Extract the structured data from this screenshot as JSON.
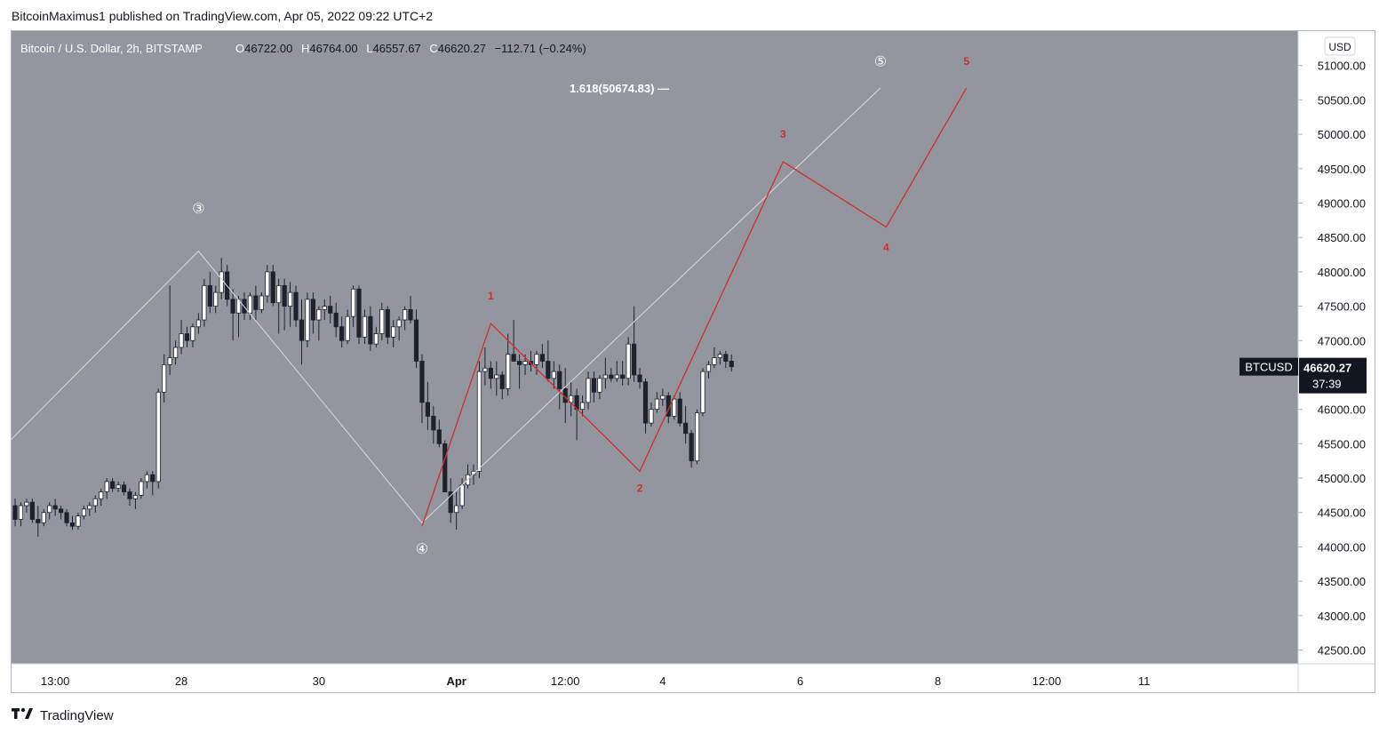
{
  "publisher_line": "BitcoinMaximus1 published on TradingView.com, Apr 05, 2022 09:22 UTC+2",
  "footer": {
    "brand": "TradingView"
  },
  "colors": {
    "plot_bg": "#94969f",
    "grid_text": "#131722",
    "candle_up": "#ffffff",
    "candle_down": "#1e222d",
    "wave_white": "#d6d8de",
    "wave_red": "#d2302c",
    "price_tag_bg": "#131722"
  },
  "chart_data": {
    "type": "candlestick",
    "title": "Bitcoin / U.S. Dollar, 2h, BITSTAMP",
    "ohlc_header": {
      "o_label": "O",
      "o": "46722.00",
      "h_label": "H",
      "h": "46764.00",
      "l_label": "L",
      "l": "46557.67",
      "c_label": "C",
      "c": "46620.27",
      "change": "−112.71 (−0.24%)"
    },
    "currency": "USD",
    "symbol": "BTCUSD",
    "last_price": "46620.27",
    "countdown": "37:39",
    "ylim": [
      42300,
      51500
    ],
    "y_ticks": [
      {
        "v": 42500,
        "label": "42500.00"
      },
      {
        "v": 43000,
        "label": "43000.00"
      },
      {
        "v": 43500,
        "label": "43500.00"
      },
      {
        "v": 44000,
        "label": "44000.00"
      },
      {
        "v": 44500,
        "label": "44500.00"
      },
      {
        "v": 45000,
        "label": "45000.00"
      },
      {
        "v": 45500,
        "label": "45500.00"
      },
      {
        "v": 46000,
        "label": "46000.00"
      },
      {
        "v": 46500,
        "label": "46500.00"
      },
      {
        "v": 47000,
        "label": "47000.00"
      },
      {
        "v": 47500,
        "label": "47500.00"
      },
      {
        "v": 48000,
        "label": "48000.00"
      },
      {
        "v": 48500,
        "label": "48500.00"
      },
      {
        "v": 49000,
        "label": "49000.00"
      },
      {
        "v": 49500,
        "label": "49500.00"
      },
      {
        "v": 50000,
        "label": "50000.00"
      },
      {
        "v": 50500,
        "label": "50500.00"
      },
      {
        "v": 51000,
        "label": "51000.00"
      }
    ],
    "x_ticks": [
      {
        "i": 7,
        "label": "13:00",
        "bold": false
      },
      {
        "i": 29,
        "label": "28",
        "bold": false
      },
      {
        "i": 53,
        "label": "30",
        "bold": false
      },
      {
        "i": 77,
        "label": "Apr",
        "bold": true
      },
      {
        "i": 96,
        "label": "12:00",
        "bold": false
      },
      {
        "i": 113,
        "label": "4",
        "bold": false
      },
      {
        "i": 137,
        "label": "6",
        "bold": false
      },
      {
        "i": 161,
        "label": "8",
        "bold": false
      },
      {
        "i": 180,
        "label": "12:00",
        "bold": false
      },
      {
        "i": 197,
        "label": "11",
        "bold": false
      }
    ],
    "candles": [
      [
        44600,
        44700,
        44300,
        44400
      ],
      [
        44400,
        44650,
        44300,
        44600
      ],
      [
        44600,
        44700,
        44500,
        44650
      ],
      [
        44650,
        44700,
        44350,
        44400
      ],
      [
        44400,
        44600,
        44150,
        44350
      ],
      [
        44350,
        44550,
        44300,
        44500
      ],
      [
        44500,
        44650,
        44400,
        44600
      ],
      [
        44600,
        44700,
        44450,
        44550
      ],
      [
        44550,
        44600,
        44400,
        44500
      ],
      [
        44500,
        44550,
        44300,
        44350
      ],
      [
        44350,
        44450,
        44250,
        44300
      ],
      [
        44300,
        44500,
        44250,
        44450
      ],
      [
        44450,
        44600,
        44400,
        44550
      ],
      [
        44550,
        44650,
        44450,
        44600
      ],
      [
        44600,
        44750,
        44500,
        44700
      ],
      [
        44700,
        44850,
        44600,
        44800
      ],
      [
        44800,
        45000,
        44700,
        44950
      ],
      [
        44950,
        45000,
        44800,
        44850
      ],
      [
        44850,
        44950,
        44800,
        44900
      ],
      [
        44900,
        44950,
        44750,
        44800
      ],
      [
        44800,
        44850,
        44600,
        44700
      ],
      [
        44700,
        44800,
        44550,
        44750
      ],
      [
        44750,
        45000,
        44700,
        44950
      ],
      [
        44950,
        45100,
        44850,
        45050
      ],
      [
        45050,
        45100,
        44750,
        44950
      ],
      [
        44950,
        46300,
        44850,
        46250
      ],
      [
        46250,
        46800,
        46100,
        46650
      ],
      [
        46650,
        47800,
        46500,
        46750
      ],
      [
        46750,
        47000,
        46650,
        46900
      ],
      [
        46900,
        47300,
        46800,
        47100
      ],
      [
        47100,
        47200,
        46900,
        47000
      ],
      [
        47000,
        47250,
        46900,
        47200
      ],
      [
        47200,
        47400,
        47100,
        47300
      ],
      [
        47300,
        47900,
        47200,
        47800
      ],
      [
        47800,
        48000,
        47400,
        47500
      ],
      [
        47500,
        47800,
        47400,
        47700
      ],
      [
        47700,
        48200,
        47600,
        48000
      ],
      [
        48000,
        48100,
        47500,
        47600
      ],
      [
        47600,
        47750,
        47000,
        47400
      ],
      [
        47400,
        47650,
        47050,
        47600
      ],
      [
        47600,
        47700,
        47300,
        47400
      ],
      [
        47400,
        47700,
        47300,
        47650
      ],
      [
        47650,
        47800,
        47300,
        47450
      ],
      [
        47450,
        47700,
        47400,
        47650
      ],
      [
        47650,
        48100,
        47550,
        48000
      ],
      [
        48000,
        48100,
        47500,
        47550
      ],
      [
        47550,
        47900,
        47100,
        47800
      ],
      [
        47800,
        47900,
        47150,
        47500
      ],
      [
        47500,
        47850,
        47200,
        47700
      ],
      [
        47700,
        47800,
        47200,
        47300
      ],
      [
        47300,
        47600,
        46650,
        47000
      ],
      [
        47000,
        47700,
        46900,
        47600
      ],
      [
        47600,
        47700,
        47100,
        47300
      ],
      [
        47300,
        47500,
        47000,
        47450
      ],
      [
        47450,
        47600,
        47300,
        47500
      ],
      [
        47500,
        47650,
        47250,
        47400
      ],
      [
        47400,
        47550,
        47050,
        47200
      ],
      [
        47200,
        47350,
        46900,
        47000
      ],
      [
        47000,
        47450,
        46950,
        47350
      ],
      [
        47350,
        47800,
        47200,
        47750
      ],
      [
        47750,
        47800,
        46950,
        47050
      ],
      [
        47050,
        47450,
        46950,
        47350
      ],
      [
        47350,
        47500,
        46850,
        46950
      ],
      [
        46950,
        47200,
        46900,
        47100
      ],
      [
        47100,
        47550,
        47000,
        47450
      ],
      [
        47450,
        47500,
        46950,
        47050
      ],
      [
        47050,
        47300,
        46900,
        47200
      ],
      [
        47200,
        47350,
        47000,
        47300
      ],
      [
        47300,
        47500,
        47150,
        47450
      ],
      [
        47450,
        47650,
        47250,
        47300
      ],
      [
        47300,
        47450,
        46600,
        46700
      ],
      [
        46700,
        46800,
        45800,
        46100
      ],
      [
        46100,
        46400,
        45700,
        45900
      ],
      [
        45900,
        46050,
        45500,
        45700
      ],
      [
        45700,
        45850,
        45450,
        45500
      ],
      [
        45500,
        45550,
        44850,
        44800
      ],
      [
        44800,
        45000,
        44350,
        44500
      ],
      [
        44500,
        44800,
        44250,
        44600
      ],
      [
        44600,
        45000,
        44550,
        44900
      ],
      [
        44900,
        45200,
        44850,
        45050
      ],
      [
        45050,
        45200,
        44900,
        45100
      ],
      [
        45100,
        46700,
        45000,
        46550
      ],
      [
        46550,
        46900,
        46350,
        46600
      ],
      [
        46600,
        46700,
        46300,
        46450
      ],
      [
        46450,
        46700,
        46200,
        46500
      ],
      [
        46500,
        46550,
        46150,
        46300
      ],
      [
        46300,
        47100,
        46200,
        46800
      ],
      [
        46800,
        47300,
        46700,
        46700
      ],
      [
        46700,
        46800,
        46300,
        46650
      ],
      [
        46650,
        46800,
        46500,
        46700
      ],
      [
        46700,
        46850,
        46550,
        46650
      ],
      [
        46650,
        46850,
        46500,
        46800
      ],
      [
        46800,
        46950,
        46600,
        46700
      ],
      [
        46700,
        47000,
        46400,
        46450
      ],
      [
        46450,
        46700,
        46300,
        46550
      ],
      [
        46550,
        46650,
        46000,
        46300
      ],
      [
        46300,
        46600,
        45800,
        46100
      ],
      [
        46100,
        46400,
        45900,
        46200
      ],
      [
        46200,
        46300,
        45550,
        46000
      ],
      [
        46000,
        46200,
        45900,
        46100
      ],
      [
        46100,
        46550,
        46000,
        46450
      ],
      [
        46450,
        46550,
        46100,
        46250
      ],
      [
        46250,
        46500,
        46150,
        46450
      ],
      [
        46450,
        46750,
        46300,
        46500
      ],
      [
        46500,
        46600,
        46400,
        46450
      ],
      [
        46450,
        46700,
        46400,
        46500
      ],
      [
        46500,
        46700,
        46350,
        46450
      ],
      [
        46450,
        47050,
        46350,
        46950
      ],
      [
        46950,
        47500,
        46400,
        46500
      ],
      [
        46500,
        46600,
        46300,
        46400
      ],
      [
        46400,
        46450,
        45650,
        45800
      ],
      [
        45800,
        46100,
        45750,
        46000
      ],
      [
        46000,
        46250,
        45950,
        46150
      ],
      [
        46150,
        46300,
        46050,
        46200
      ],
      [
        46200,
        46250,
        45800,
        45900
      ],
      [
        45900,
        46200,
        45850,
        46150
      ],
      [
        46150,
        46250,
        45750,
        45800
      ],
      [
        45800,
        46050,
        45500,
        45650
      ],
      [
        45650,
        45700,
        45150,
        45250
      ],
      [
        45250,
        46000,
        45200,
        45950
      ],
      [
        45950,
        46600,
        45900,
        46550
      ],
      [
        46550,
        46700,
        46450,
        46650
      ],
      [
        46650,
        46900,
        46600,
        46750
      ],
      [
        46750,
        46850,
        46650,
        46800
      ],
      [
        46800,
        46850,
        46600,
        46700
      ],
      [
        46700,
        46800,
        46550,
        46620
      ]
    ],
    "wave_white": {
      "points": [
        [
          -5,
          45200
        ],
        [
          32,
          48300
        ],
        [
          71,
          44350
        ],
        [
          151,
          50674
        ]
      ],
      "labels": [
        {
          "text": "③",
          "i": 32,
          "v": 48850
        },
        {
          "text": "④",
          "i": 71,
          "v": 43900
        },
        {
          "text": "⑤",
          "i": 151,
          "v": 50990
        }
      ]
    },
    "wave_red": {
      "points": [
        [
          71,
          44300
        ],
        [
          83,
          47250
        ],
        [
          109,
          45100
        ],
        [
          134,
          49600
        ],
        [
          152,
          48650
        ],
        [
          166,
          50674
        ]
      ],
      "labels": [
        {
          "text": "1",
          "i": 83,
          "v": 47600
        },
        {
          "text": "2",
          "i": 109,
          "v": 44800
        },
        {
          "text": "3",
          "i": 134,
          "v": 49950
        },
        {
          "text": "4",
          "i": 152,
          "v": 48300
        },
        {
          "text": "5",
          "i": 166,
          "v": 51010
        }
      ]
    },
    "fib": {
      "text": "1.618(50674.83) —",
      "v": 50674.83
    }
  }
}
